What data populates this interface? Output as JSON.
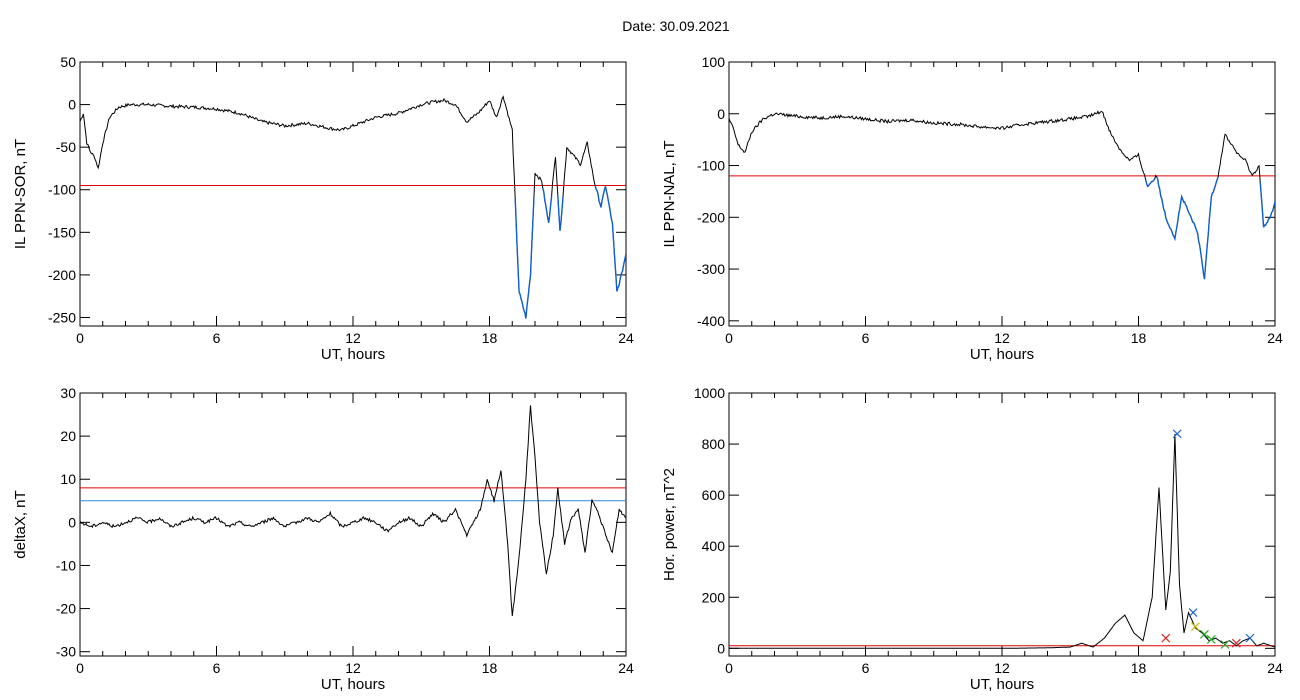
{
  "title": "Date:  30.09.2021",
  "colors": {
    "trace": "#000000",
    "red_line": "#e00000",
    "blue_segment": "#1060d0",
    "blue_line": "#2a8ad8",
    "marker_blue": "#2266cc",
    "marker_green": "#22aa22",
    "marker_red": "#dd2222",
    "marker_yellow": "#ccbb00"
  },
  "chart_data": [
    {
      "type": "line",
      "ylabel": "IL PPN-SOR, nT",
      "xlabel": "UT, hours",
      "xlim": [
        0,
        24
      ],
      "ylim": [
        -260,
        50
      ],
      "xticks": [
        0,
        6,
        12,
        18,
        24
      ],
      "yticks": [
        50,
        0,
        -50,
        -100,
        -150,
        -200,
        -250
      ],
      "threshold": -95,
      "series": [
        {
          "x": [
            0,
            0.15,
            0.3,
            0.45,
            0.65,
            0.8,
            1.0,
            1.3,
            1.7,
            2.2,
            3,
            4,
            5,
            6,
            7,
            8,
            9,
            10,
            11,
            11.5,
            12,
            13,
            14,
            15,
            15.5,
            16,
            16.5,
            17,
            17.5,
            18,
            18.3,
            18.6,
            19,
            19.3,
            19.6,
            19.8,
            20.0,
            20.3,
            20.6,
            20.9,
            21.1,
            21.4,
            21.7,
            22.0,
            22.3,
            22.6,
            22.9,
            23.1,
            23.4,
            23.6,
            23.8,
            24
          ],
          "values": [
            -20,
            -10,
            -45,
            -55,
            -62,
            -75,
            -45,
            -15,
            -3,
            0,
            0,
            -2,
            -3,
            -5,
            -10,
            -20,
            -25,
            -22,
            -28,
            -30,
            -25,
            -15,
            -10,
            0,
            3,
            5,
            0,
            -20,
            -10,
            5,
            -15,
            10,
            -30,
            -220,
            -250,
            -200,
            -80,
            -90,
            -140,
            -60,
            -150,
            -50,
            -60,
            -70,
            -45,
            -90,
            -120,
            -95,
            -140,
            -220,
            -200,
            -175
          ]
        }
      ]
    },
    {
      "type": "line",
      "ylabel": "IL PPN-NAL, nT",
      "xlabel": "UT, hours",
      "xlim": [
        0,
        24
      ],
      "ylim": [
        -410,
        100
      ],
      "xticks": [
        0,
        6,
        12,
        18,
        24
      ],
      "yticks": [
        100,
        0,
        -100,
        -200,
        -300,
        -400
      ],
      "threshold": -120,
      "series": [
        {
          "x": [
            0,
            0.2,
            0.4,
            0.7,
            1.0,
            1.5,
            2,
            3,
            4,
            5,
            6,
            7,
            8,
            9,
            10,
            11,
            12,
            13,
            14,
            15,
            15.8,
            16.4,
            16.8,
            17.2,
            17.6,
            18.0,
            18.4,
            18.8,
            19.2,
            19.6,
            19.9,
            20.2,
            20.6,
            20.9,
            21.2,
            21.5,
            21.8,
            22.1,
            22.4,
            22.7,
            23.0,
            23.3,
            23.5,
            23.8,
            24
          ],
          "values": [
            -10,
            -30,
            -60,
            -75,
            -35,
            -10,
            0,
            -5,
            -8,
            -5,
            -10,
            -15,
            -12,
            -18,
            -20,
            -25,
            -28,
            -20,
            -15,
            -10,
            -5,
            5,
            -40,
            -70,
            -90,
            -80,
            -140,
            -120,
            -200,
            -240,
            -160,
            -190,
            -230,
            -320,
            -160,
            -120,
            -40,
            -60,
            -80,
            -90,
            -120,
            -100,
            -220,
            -200,
            -170
          ]
        }
      ]
    },
    {
      "type": "line",
      "ylabel": "deltaX, nT",
      "xlabel": "UT, hours",
      "xlim": [
        0,
        24
      ],
      "ylim": [
        -31,
        30
      ],
      "xticks": [
        0,
        6,
        12,
        18,
        24
      ],
      "yticks": [
        30,
        20,
        10,
        0,
        -10,
        -20,
        -30
      ],
      "threshold": 8,
      "threshold2": 5,
      "series": [
        {
          "x": [
            0,
            0.5,
            1,
            1.5,
            2,
            2.5,
            3,
            3.5,
            4,
            4.5,
            5,
            5.5,
            6,
            6.5,
            7,
            7.5,
            8,
            8.5,
            9,
            9.5,
            10,
            10.5,
            11,
            11.5,
            12,
            12.5,
            13,
            13.5,
            14,
            14.5,
            15,
            15.5,
            16,
            16.5,
            17,
            17.3,
            17.6,
            17.9,
            18.2,
            18.5,
            18.8,
            19.0,
            19.3,
            19.6,
            19.8,
            20.0,
            20.2,
            20.5,
            20.8,
            21.0,
            21.3,
            21.6,
            21.9,
            22.2,
            22.5,
            22.8,
            23.1,
            23.4,
            23.7,
            24
          ],
          "values": [
            0,
            -1,
            0,
            -1,
            0,
            1,
            0,
            1,
            -1,
            0,
            1,
            0,
            1,
            -1,
            0,
            -1,
            0,
            1,
            -1,
            0,
            1,
            0,
            2,
            -1,
            0,
            1,
            0,
            -2,
            0,
            1,
            -1,
            2,
            0,
            3,
            -3,
            0,
            3,
            10,
            5,
            12,
            -5,
            -22,
            -8,
            10,
            27,
            15,
            0,
            -12,
            -3,
            8,
            -5,
            1,
            3,
            -7,
            5,
            2,
            -3,
            -7,
            3,
            1
          ]
        }
      ]
    },
    {
      "type": "line",
      "ylabel": "Hor. power, nT^2",
      "xlabel": "UT, hours",
      "xlim": [
        0,
        24
      ],
      "ylim": [
        -30,
        1000
      ],
      "xticks": [
        0,
        6,
        12,
        18,
        24
      ],
      "yticks": [
        1000,
        800,
        600,
        400,
        200,
        0
      ],
      "threshold": 10,
      "series": [
        {
          "x": [
            0,
            2,
            4,
            6,
            8,
            10,
            12,
            14,
            15,
            15.5,
            16,
            16.5,
            17,
            17.4,
            17.8,
            18.2,
            18.6,
            18.9,
            19.2,
            19.4,
            19.6,
            19.8,
            20.0,
            20.2,
            20.5,
            20.8,
            21.1,
            21.4,
            21.7,
            22.0,
            22.3,
            22.6,
            22.9,
            23.2,
            23.5,
            24
          ],
          "values": [
            0,
            0,
            0,
            0,
            0,
            0,
            0,
            2,
            5,
            20,
            5,
            40,
            100,
            130,
            60,
            30,
            200,
            630,
            150,
            300,
            840,
            250,
            60,
            140,
            80,
            60,
            30,
            40,
            20,
            30,
            10,
            30,
            40,
            10,
            20,
            5
          ]
        }
      ],
      "markers": [
        {
          "x": 19.7,
          "value": 840,
          "color": "blue"
        },
        {
          "x": 20.4,
          "value": 140,
          "color": "blue"
        },
        {
          "x": 20.5,
          "value": 85,
          "color": "yellow"
        },
        {
          "x": 19.2,
          "value": 40,
          "color": "red"
        },
        {
          "x": 20.9,
          "value": 55,
          "color": "green"
        },
        {
          "x": 21.2,
          "value": 35,
          "color": "green"
        },
        {
          "x": 22.9,
          "value": 40,
          "color": "blue"
        },
        {
          "x": 22.3,
          "value": 20,
          "color": "red"
        },
        {
          "x": 21.8,
          "value": 15,
          "color": "green"
        }
      ]
    }
  ]
}
